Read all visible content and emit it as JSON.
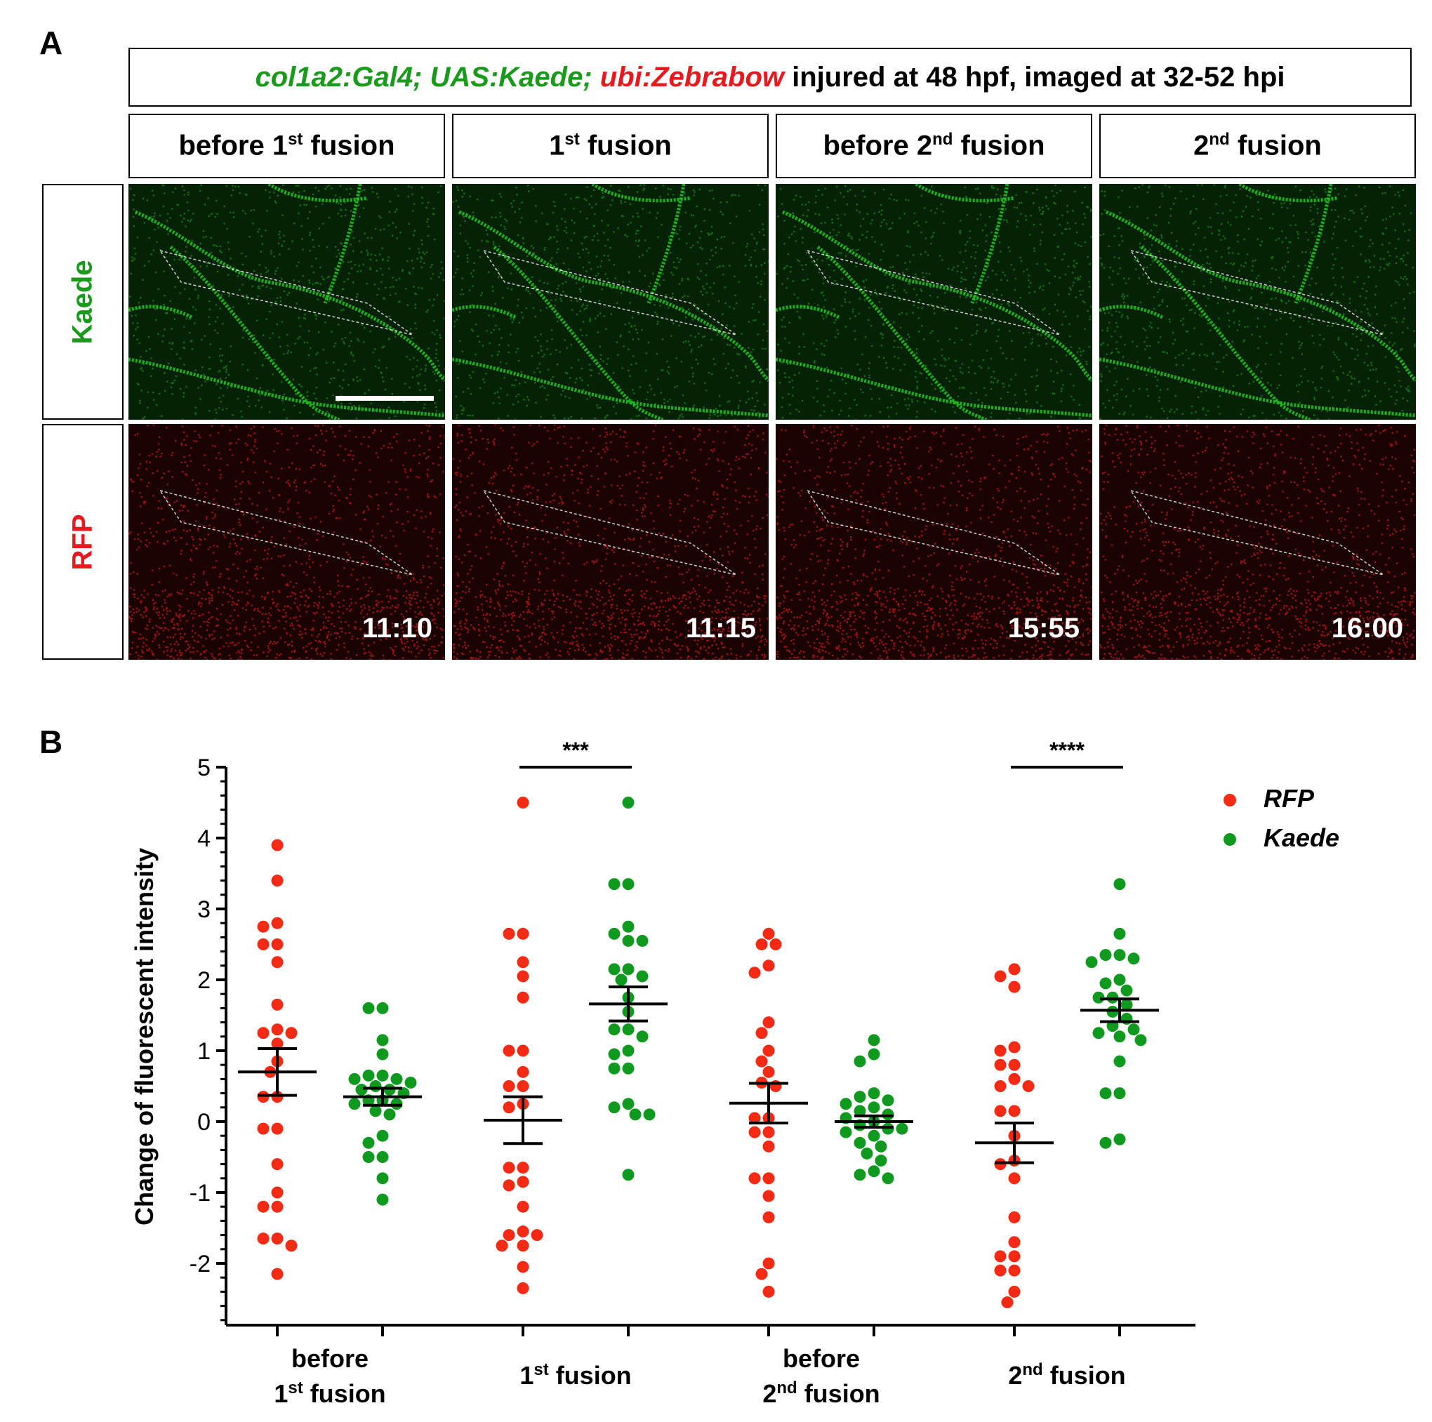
{
  "panelA": {
    "label": "A",
    "title_parts": [
      {
        "text": "col1a2:Gal4; UAS:Kaede;",
        "style": "green"
      },
      {
        "text": " ",
        "style": "plain"
      },
      {
        "text": "ubi:Zebrabow",
        "style": "red"
      },
      {
        "text": " injured at 48 hpf, imaged at 32-52 hpi",
        "style": "plain"
      }
    ],
    "stages": [
      {
        "pre": "before 1",
        "sup": "st",
        "post": " fusion"
      },
      {
        "pre": "1",
        "sup": "st",
        "post": " fusion"
      },
      {
        "pre": "before 2",
        "sup": "nd",
        "post": " fusion"
      },
      {
        "pre": "2",
        "sup": "nd",
        "post": " fusion"
      }
    ],
    "rows": [
      {
        "label": "Kaede",
        "color": "#1a9a1a"
      },
      {
        "label": "RFP",
        "color": "#e8191e"
      }
    ],
    "timestamps": [
      "11:10",
      "11:15",
      "15:55",
      "16:00"
    ],
    "channel_colors": {
      "kaede": "#22c822",
      "rfp": "#d01818"
    }
  },
  "panelB": {
    "label": "B",
    "chart_data": {
      "type": "scatter",
      "ylabel": "Change of fluorescent intensity",
      "ylim": [
        -3,
        5
      ],
      "yticks": [
        "-2",
        "-1",
        "0",
        "1",
        "2",
        "3",
        "4",
        "5"
      ],
      "yticks_values": [
        -2,
        -1,
        0,
        1,
        2,
        3,
        4,
        5
      ],
      "legend_position": "top-right",
      "categories": [
        {
          "lines": [
            {
              "pre": "before",
              "sup": "",
              "post": ""
            },
            {
              "pre": "1",
              "sup": "st",
              "post": " fusion"
            }
          ]
        },
        {
          "lines": [
            {
              "pre": "1",
              "sup": "st",
              "post": " fusion"
            }
          ]
        },
        {
          "lines": [
            {
              "pre": "before",
              "sup": "",
              "post": ""
            },
            {
              "pre": "2",
              "sup": "nd",
              "post": " fusion"
            }
          ]
        },
        {
          "lines": [
            {
              "pre": "2",
              "sup": "nd",
              "post": " fusion"
            }
          ]
        }
      ],
      "series": [
        {
          "name": "RFP",
          "color": "#f52a14",
          "groups": [
            {
              "mean": 0.7,
              "sem": 0.33,
              "values": [
                3.9,
                3.4,
                2.8,
                2.75,
                2.5,
                2.5,
                2.25,
                1.65,
                1.3,
                1.25,
                1.25,
                1.1,
                0.85,
                0.7,
                0.35,
                0.35,
                -0.1,
                -0.1,
                -0.6,
                -1.0,
                -1.2,
                -1.2,
                -1.65,
                -1.65,
                -1.75,
                -2.15
              ]
            },
            {
              "mean": 0.02,
              "sem": 0.33,
              "values": [
                4.5,
                2.65,
                2.65,
                2.25,
                2.05,
                1.75,
                1.0,
                1.0,
                0.7,
                0.5,
                0.5,
                0.25,
                0.2,
                -0.65,
                -0.65,
                -0.85,
                -0.9,
                -1.2,
                -1.55,
                -1.6,
                -1.6,
                -1.75,
                -1.75,
                -2.05,
                -2.35
              ]
            },
            {
              "mean": 0.26,
              "sem": 0.28,
              "values": [
                2.65,
                2.5,
                2.5,
                2.2,
                2.1,
                1.4,
                1.25,
                1.0,
                0.85,
                0.7,
                0.55,
                0.5,
                0.05,
                0.05,
                -0.15,
                -0.15,
                -0.35,
                -0.8,
                -0.8,
                -1.05,
                -1.35,
                -2.0,
                -2.15,
                -2.4
              ]
            },
            {
              "mean": -0.3,
              "sem": 0.28,
              "values": [
                2.05,
                2.15,
                1.9,
                1.05,
                1.0,
                0.8,
                0.8,
                0.6,
                0.5,
                0.5,
                0.15,
                0.15,
                -0.2,
                -0.55,
                -0.6,
                -0.8,
                -1.35,
                -1.7,
                -1.9,
                -1.9,
                -2.1,
                -2.1,
                -2.4,
                -2.55
              ]
            }
          ]
        },
        {
          "name": "Kaede",
          "color": "#0f9a1f",
          "groups": [
            {
              "mean": 0.35,
              "sem": 0.12,
              "values": [
                1.6,
                1.6,
                1.15,
                0.95,
                0.65,
                0.65,
                0.6,
                0.6,
                0.55,
                0.5,
                0.45,
                0.45,
                0.4,
                0.3,
                0.3,
                0.25,
                0.25,
                0.15,
                0.1,
                -0.2,
                -0.3,
                -0.5,
                -0.5,
                -0.8,
                -1.1
              ]
            },
            {
              "mean": 1.66,
              "sem": 0.24,
              "values": [
                4.5,
                3.35,
                3.35,
                2.75,
                2.65,
                2.55,
                2.55,
                2.15,
                2.15,
                2.05,
                2.0,
                1.75,
                1.55,
                1.3,
                1.3,
                1.2,
                1.0,
                0.95,
                0.75,
                0.75,
                0.25,
                0.2,
                0.1,
                0.1,
                -0.75
              ]
            },
            {
              "mean": 0.0,
              "sem": 0.08,
              "values": [
                1.15,
                0.95,
                0.85,
                0.4,
                0.35,
                0.3,
                0.25,
                0.2,
                0.15,
                0.1,
                0.05,
                0.0,
                -0.05,
                -0.1,
                -0.1,
                -0.15,
                -0.2,
                -0.3,
                -0.35,
                -0.45,
                -0.55,
                -0.7,
                -0.75,
                -0.8
              ]
            },
            {
              "mean": 1.57,
              "sem": 0.16,
              "values": [
                3.35,
                2.65,
                2.35,
                2.35,
                2.3,
                2.25,
                2.0,
                1.95,
                1.85,
                1.75,
                1.75,
                1.65,
                1.55,
                1.45,
                1.35,
                1.3,
                1.25,
                1.2,
                1.15,
                0.85,
                0.4,
                0.4,
                -0.25,
                -0.3
              ]
            }
          ]
        }
      ],
      "significance": [
        {
          "category_index": 1,
          "label": "***"
        },
        {
          "category_index": 3,
          "label": "****"
        }
      ]
    }
  }
}
